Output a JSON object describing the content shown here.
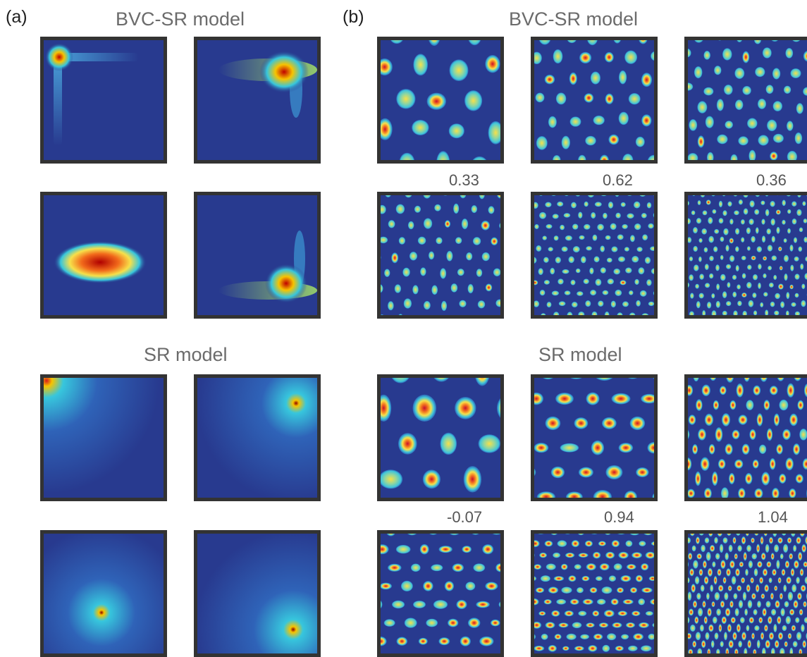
{
  "panel_a": {
    "label": "(a)",
    "bvc_title": "BVC-SR model",
    "sr_title": "SR model"
  },
  "panel_b": {
    "label": "(b)",
    "bvc_title": "BVC-SR model",
    "sr_title": "SR model",
    "bvc_scores": [
      "0.33",
      "0.62",
      "0.36"
    ],
    "sr_scores": [
      "-0.07",
      "0.94",
      "1.04"
    ]
  },
  "colors": {
    "map_background": "#283a8f",
    "frame": "#333333",
    "peak": "#d7191c",
    "mid": "#fdae61",
    "low": "#abdda4",
    "cyan": "#2bc3e0"
  }
}
